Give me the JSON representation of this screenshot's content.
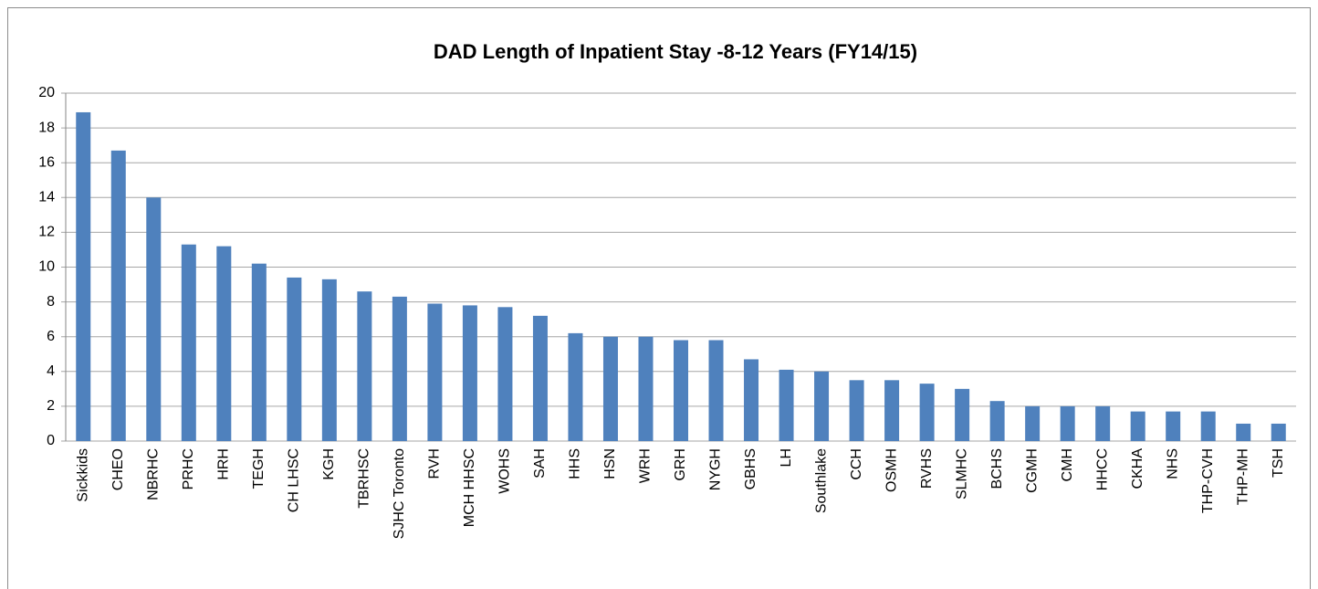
{
  "chart_data": {
    "type": "bar",
    "title": "DAD Length of Inpatient Stay -8-12 Years (FY14/15)",
    "categories": [
      "Sickkids",
      "CHEO",
      "NBRHC",
      "PRHC",
      "HRH",
      "TEGH",
      "CH LHSC",
      "KGH",
      "TBRHSC",
      "SJHC Toronto",
      "RVH",
      "MCH HHSC",
      "WOHS",
      "SAH",
      "HHS",
      "HSN",
      "WRH",
      "GRH",
      "NYGH",
      "GBHS",
      "LH",
      "Southlake",
      "CCH",
      "OSMH",
      "RVHS",
      "SLMHC",
      "BCHS",
      "CGMH",
      "CMH",
      "HHCC",
      "CKHA",
      "NHS",
      "THP-CVH",
      "THP-MH",
      "TSH"
    ],
    "values": [
      18.9,
      16.7,
      14.0,
      11.3,
      11.2,
      10.2,
      9.4,
      9.3,
      8.6,
      8.3,
      7.9,
      7.8,
      7.7,
      7.2,
      6.2,
      6.0,
      6.0,
      5.8,
      5.8,
      4.7,
      4.1,
      4.0,
      3.5,
      3.5,
      3.3,
      3.0,
      2.3,
      2.0,
      2.0,
      2.0,
      1.7,
      1.7,
      1.7,
      1.0,
      1.0
    ],
    "color": "#4f81bd",
    "ylim": [
      0,
      20
    ],
    "yticks": [
      0,
      2,
      4,
      6,
      8,
      10,
      12,
      14,
      16,
      18,
      20
    ],
    "grid": true
  }
}
